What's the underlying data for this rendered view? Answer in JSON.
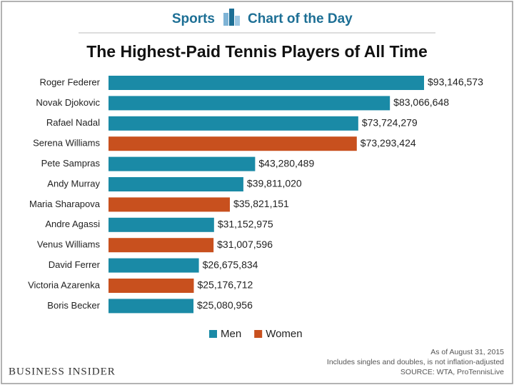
{
  "chart_data": {
    "type": "bar",
    "orientation": "horizontal",
    "section": "Sports",
    "header": "Chart of the Day",
    "title": "The Highest-Paid Tennis Players of All Time",
    "categories": [
      "Roger Federer",
      "Novak Djokovic",
      "Rafael Nadal",
      "Serena Williams",
      "Pete Sampras",
      "Andy Murray",
      "Maria Sharapova",
      "Andre Agassi",
      "Venus Williams",
      "David Ferrer",
      "Victoria Azarenka",
      "Boris Becker"
    ],
    "series": [
      {
        "name": "Men",
        "color": "#1a8aa6",
        "values": [
          93146573,
          83066648,
          73724279,
          null,
          43280489,
          39811020,
          null,
          31152975,
          null,
          26675834,
          null,
          25080956
        ],
        "value_labels": [
          "$93,146,573",
          "$83,066,648",
          "$73,724,279",
          null,
          "$43,280,489",
          "$39,811,020",
          null,
          "$31,152,975",
          null,
          "$26,675,834",
          null,
          "$25,080,956"
        ]
      },
      {
        "name": "Women",
        "color": "#c8501e",
        "values": [
          null,
          null,
          null,
          73293424,
          null,
          null,
          35821151,
          null,
          31007596,
          null,
          25176712,
          null
        ],
        "value_labels": [
          null,
          null,
          null,
          "$73,293,424",
          null,
          null,
          "$35,821,151",
          null,
          "$31,007,596",
          null,
          "$25,176,712",
          null
        ]
      }
    ],
    "notes": [
      "As of August 31, 2015",
      "Includes singles and doubles, is not inflation-adjusted",
      "SOURCE: WTA, ProTennisLive"
    ],
    "brand": "BUSINESS INSIDER"
  }
}
